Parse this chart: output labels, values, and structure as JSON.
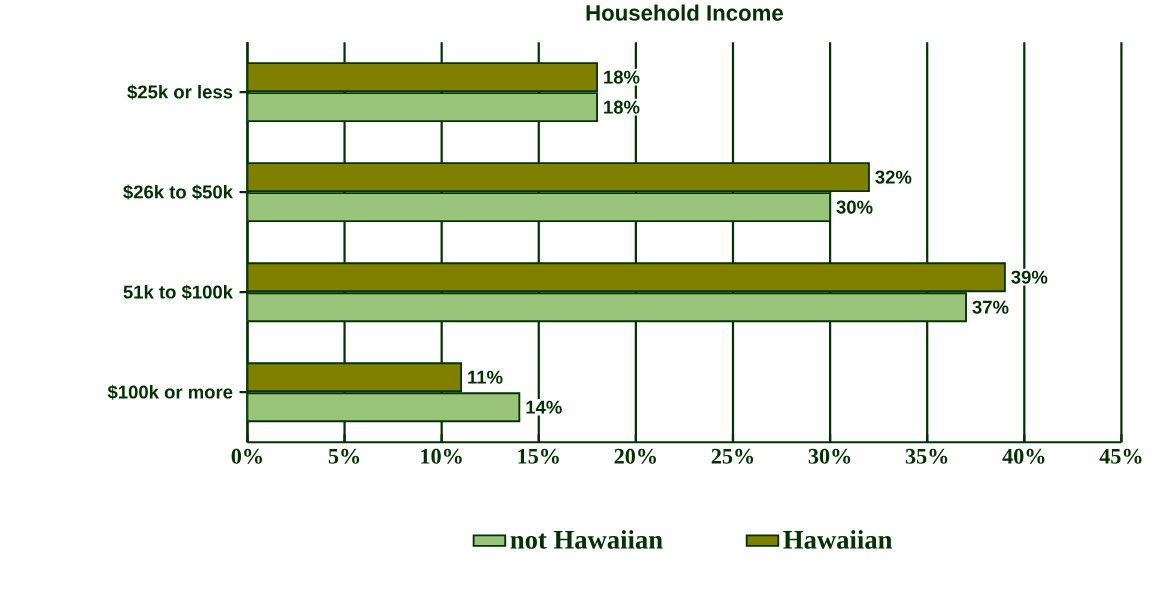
{
  "chart_data": {
    "type": "bar",
    "orientation": "horizontal",
    "title": "Household Income",
    "categories": [
      "$25k or less",
      "$26k to $50k",
      "51k to $100k",
      "$100k or more"
    ],
    "series": [
      {
        "name": "not Hawaiian",
        "color": "#99c47a",
        "values": [
          18,
          30,
          37,
          14
        ],
        "value_labels": [
          "18%",
          "30%",
          "37%",
          "14%"
        ]
      },
      {
        "name": "Hawaiian",
        "color": "#808000",
        "values": [
          18,
          32,
          39,
          11
        ],
        "value_labels": [
          "18%",
          "32%",
          "39%",
          "11%"
        ]
      }
    ],
    "xlim": [
      0,
      45
    ],
    "xticks": [
      {
        "value": 0,
        "label": "0%"
      },
      {
        "value": 5,
        "label": "5%"
      },
      {
        "value": 10,
        "label": "10%"
      },
      {
        "value": 15,
        "label": "15%"
      },
      {
        "value": 20,
        "label": "20%"
      },
      {
        "value": 25,
        "label": "25%"
      },
      {
        "value": 30,
        "label": "30%"
      },
      {
        "value": 35,
        "label": "35%"
      },
      {
        "value": 40,
        "label": "40%"
      },
      {
        "value": 45,
        "label": "45%"
      }
    ],
    "grid": "x",
    "legend": "bottom"
  }
}
